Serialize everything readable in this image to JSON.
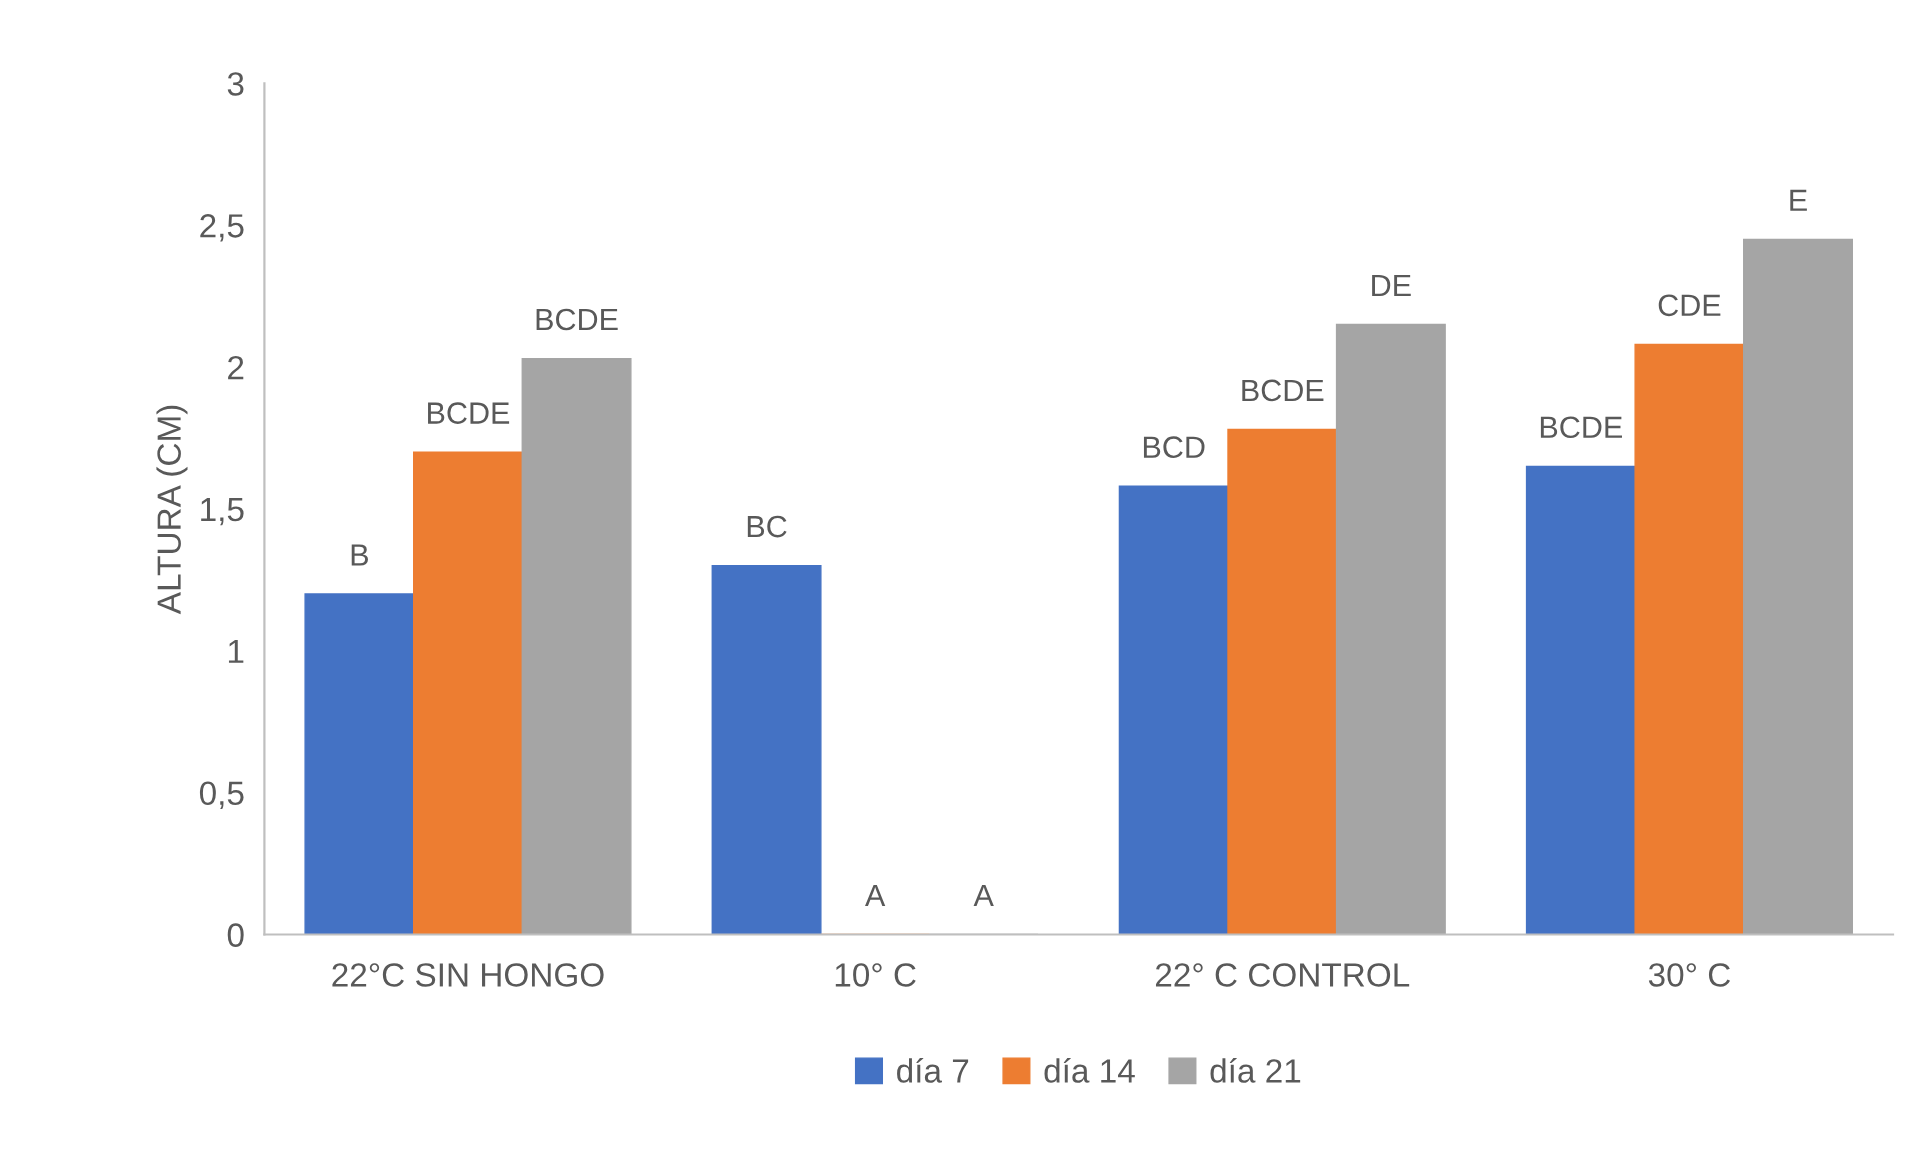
{
  "chart_data": {
    "type": "bar",
    "ylabel": "ALTURA (CM)",
    "categories": [
      "22°C SIN HONGO",
      "10° C",
      "22° C CONTROL",
      "30° C"
    ],
    "series": [
      {
        "name": "día 7",
        "color": "#4472c4",
        "values": [
          1.2,
          1.3,
          1.58,
          1.65
        ],
        "value_labels": [
          "B",
          "BC",
          "BCD",
          "BCDE"
        ]
      },
      {
        "name": "día 14",
        "color": "#ed7d31",
        "values": [
          1.7,
          0,
          1.78,
          2.08
        ],
        "value_labels": [
          "BCDE",
          "A",
          "BCDE",
          "CDE"
        ]
      },
      {
        "name": "día 21",
        "color": "#a5a5a5",
        "values": [
          2.03,
          0,
          2.15,
          2.45
        ],
        "value_labels": [
          "BCDE",
          "A",
          "DE",
          "E"
        ]
      }
    ],
    "ylim": [
      0,
      3
    ],
    "yticks": [
      {
        "value": 0,
        "label": "0"
      },
      {
        "value": 0.5,
        "label": "0,5"
      },
      {
        "value": 1,
        "label": "1"
      },
      {
        "value": 1.5,
        "label": "1,5"
      },
      {
        "value": 2,
        "label": "2"
      },
      {
        "value": 2.5,
        "label": "2,5"
      },
      {
        "value": 3,
        "label": "3"
      }
    ],
    "grid": false,
    "legend": "bottom"
  }
}
